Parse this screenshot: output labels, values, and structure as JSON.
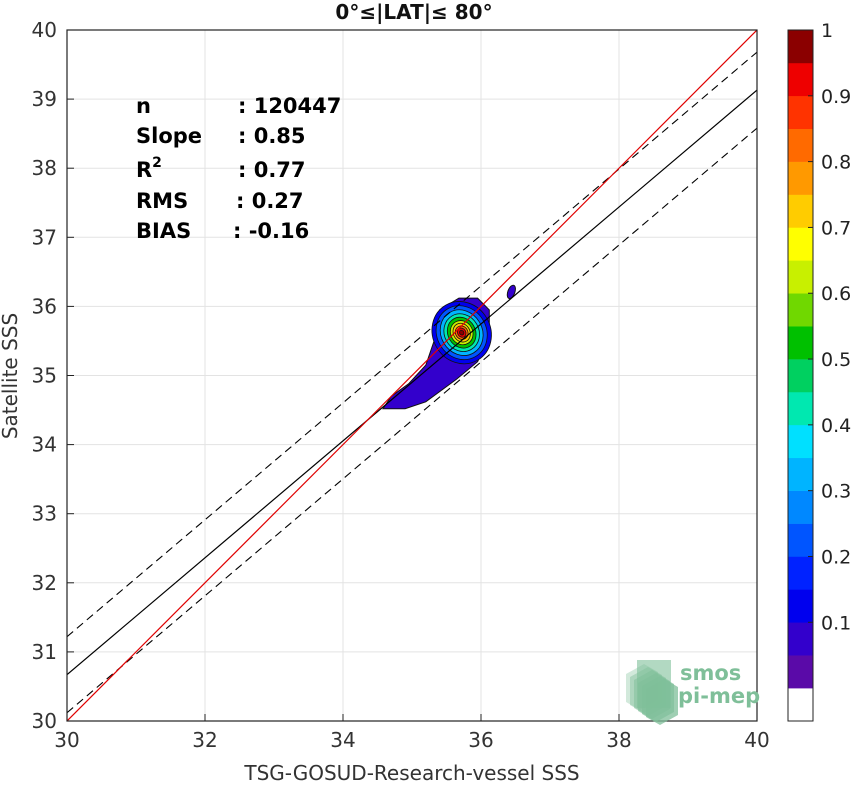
{
  "chart_data": {
    "type": "scatter",
    "title": "0°≤|LAT|≤ 80°",
    "xlabel": "TSG-GOSUD-Research-vessel SSS",
    "ylabel": "Satellite SSS",
    "xlim": [
      30,
      40
    ],
    "ylim": [
      30,
      40
    ],
    "xticks": [
      "30",
      "32",
      "34",
      "36",
      "38",
      "40"
    ],
    "yticks": [
      "30",
      "31",
      "32",
      "33",
      "34",
      "35",
      "36",
      "37",
      "38",
      "39",
      "40"
    ],
    "grid": true,
    "stats": [
      {
        "label": "n",
        "value": ": 120447"
      },
      {
        "label": "Slope",
        "value": ": 0.85"
      },
      {
        "label": "R",
        "sup": "2",
        "value": ": 0.77"
      },
      {
        "label": "RMS",
        "value": ": 0.27"
      },
      {
        "label": "BIAS",
        "value": ": -0.16"
      }
    ],
    "lines": {
      "identity": {
        "slope": 1,
        "intercept": 0,
        "color": "#e00000"
      },
      "fit": {
        "slope": 0.846,
        "intercept": 5.29,
        "color": "#000000"
      },
      "fit_bounds_offset": 0.55
    },
    "density_center": [
      35.72,
      35.62
    ],
    "colorbar": {
      "ticks": [
        "0.1",
        "0.2",
        "0.3",
        "0.4",
        "0.5",
        "0.6",
        "0.7",
        "0.8",
        "0.9",
        "1"
      ],
      "range": [
        0,
        1
      ],
      "levels": [
        0.05,
        0.1,
        0.15,
        0.2,
        0.25,
        0.3,
        0.35,
        0.4,
        0.45,
        0.5,
        0.55,
        0.6,
        0.65,
        0.7,
        0.75,
        0.8,
        0.85,
        0.9,
        0.95,
        1.0
      ],
      "colors": [
        "#ffffff",
        "#5a0aa8",
        "#3300cc",
        "#0000ee",
        "#0022ff",
        "#0055ff",
        "#0088ff",
        "#00b4ff",
        "#00e0ff",
        "#00e8b0",
        "#00d060",
        "#00c000",
        "#70d800",
        "#c8f000",
        "#ffff00",
        "#ffcc00",
        "#ff9900",
        "#ff6a00",
        "#ff3300",
        "#ee0000",
        "#8b0000"
      ]
    },
    "logo": {
      "line1": "smos",
      "line2": "pi-mep",
      "color": "#7fbf99"
    }
  }
}
